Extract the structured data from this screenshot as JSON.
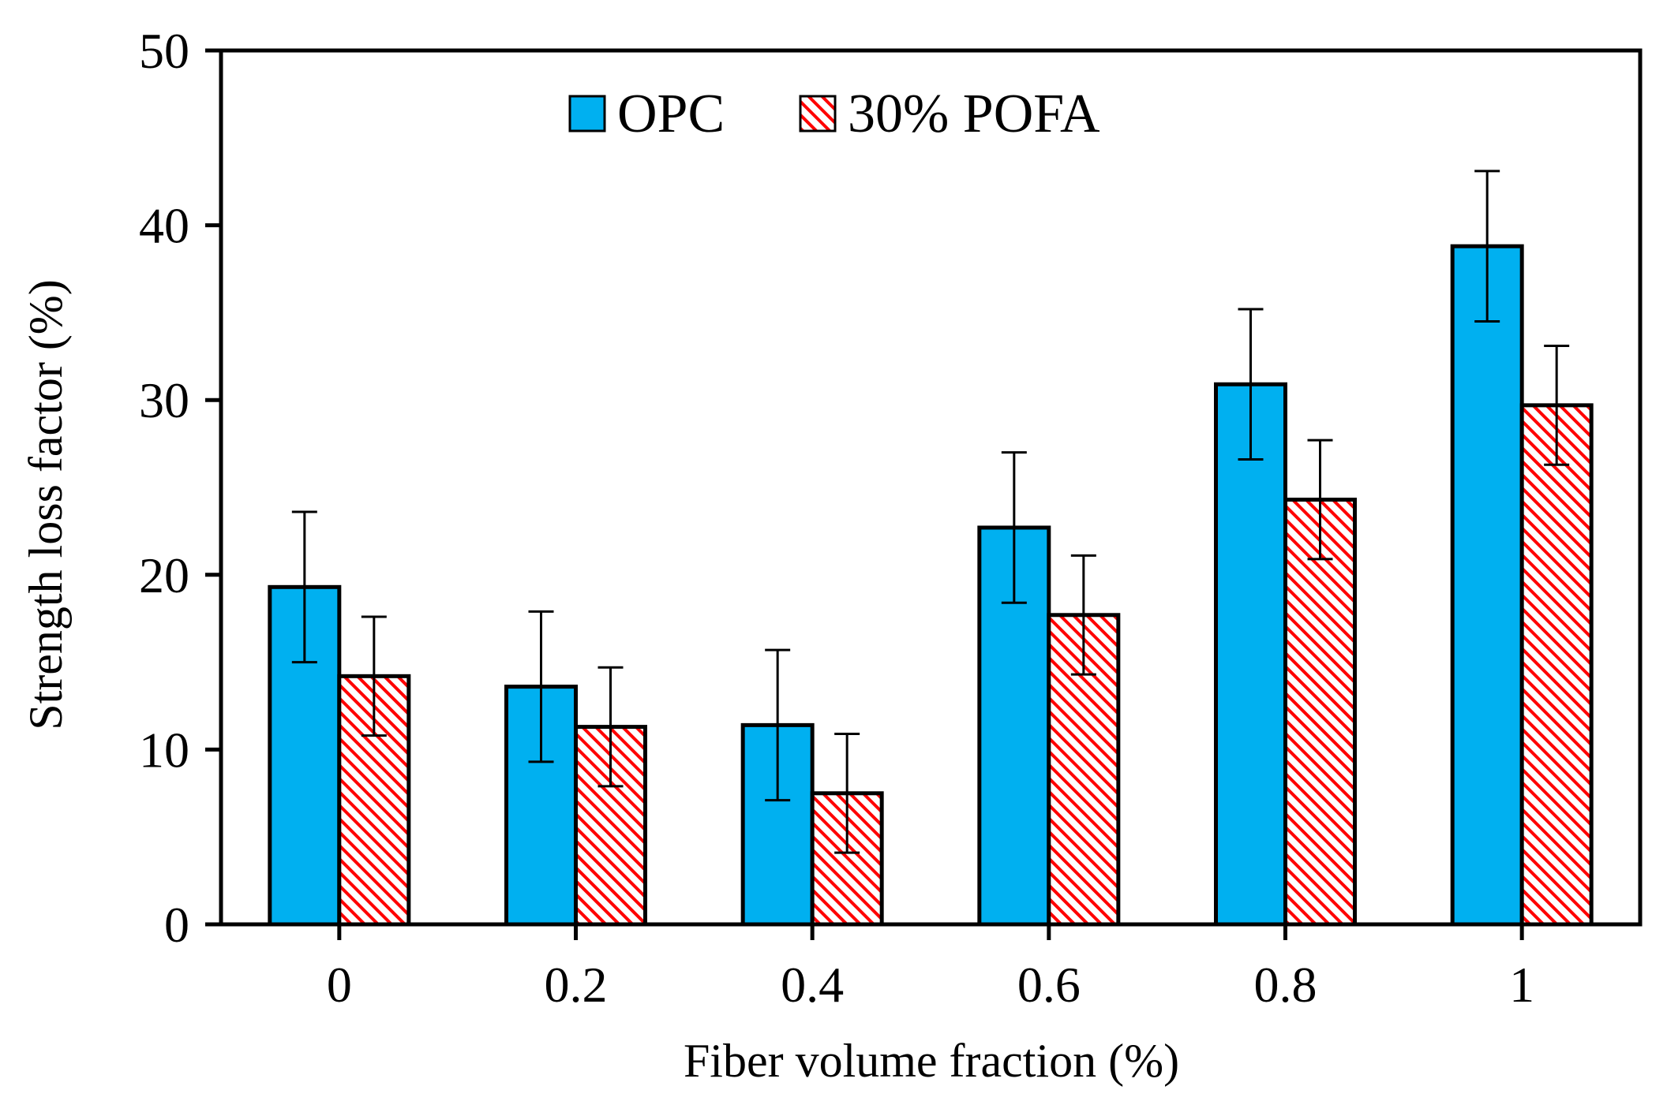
{
  "chart_data": {
    "type": "bar",
    "xlabel": "Fiber volume fraction (%)",
    "ylabel": "Strength loss factor (%)",
    "ylim": [
      0,
      50
    ],
    "yticks": [
      0,
      10,
      20,
      30,
      40,
      50
    ],
    "categories": [
      "0",
      "0.2",
      "0.4",
      "0.6",
      "0.8",
      "1"
    ],
    "legend_position": "top-center",
    "grid": false,
    "series": [
      {
        "name": "OPC",
        "values": [
          19.3,
          13.6,
          11.4,
          22.7,
          30.9,
          38.8
        ],
        "error": [
          4.3,
          4.3,
          4.3,
          4.3,
          4.3,
          4.3
        ],
        "color": "#00B0F0",
        "pattern": "solid"
      },
      {
        "name": "30% POFA",
        "values": [
          14.2,
          11.3,
          7.5,
          17.7,
          24.3,
          29.7
        ],
        "error": [
          3.4,
          3.4,
          3.4,
          3.4,
          3.4,
          3.4
        ],
        "color": "#FF0000",
        "pattern": "diagonal-hatch"
      }
    ]
  }
}
